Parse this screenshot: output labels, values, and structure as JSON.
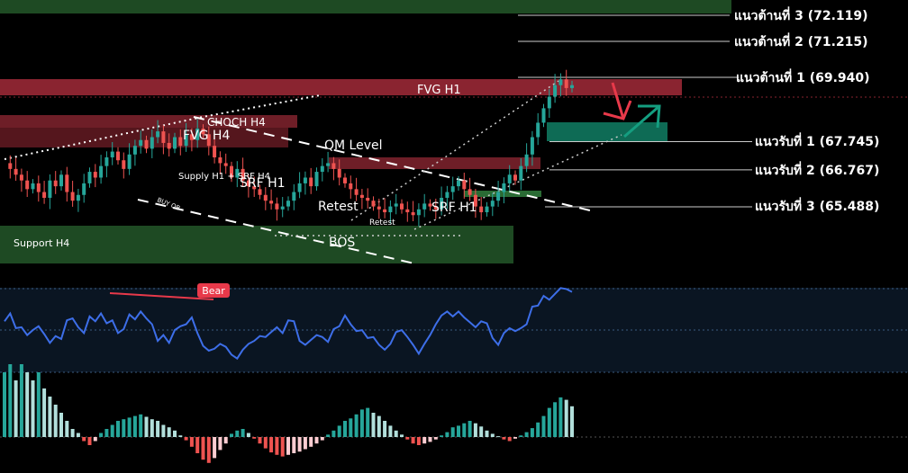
{
  "chart_data": [
    {
      "type": "candlestick",
      "title": "",
      "levels": {
        "resistance": [
          {
            "label": "แนวต้านที่ 3 (72.119)",
            "value": 72.119
          },
          {
            "label": "แนวต้านที่ 2 (71.215)",
            "value": 71.215
          },
          {
            "label": "แนวต้านที่ 1 (69.940)",
            "value": 69.94
          }
        ],
        "support": [
          {
            "label": "แนวรับที่ 1 (67.745)",
            "value": 67.745
          },
          {
            "label": "แนวรับที่ 2 (66.767)",
            "value": 66.767
          },
          {
            "label": "แนวรับที่ 3 (65.488)",
            "value": 65.488
          }
        ]
      },
      "zones": [
        "FVG H1",
        "FVG H4",
        "CHOCH H4",
        "Support H4"
      ],
      "annotations": [
        "QM Level",
        "Supply H1 + SRF H4",
        "SRF H1",
        "SRF H1",
        "Retest",
        "Retest",
        "BOS",
        "BUY OB"
      ],
      "closes": [
        67.0,
        66.8,
        66.6,
        66.4,
        66.1,
        66.3,
        66.0,
        65.8,
        66.4,
        66.2,
        66.6,
        66.0,
        65.7,
        65.9,
        66.3,
        66.7,
        66.5,
        66.9,
        67.2,
        67.4,
        67.1,
        66.8,
        67.3,
        67.6,
        67.8,
        67.5,
        67.9,
        68.1,
        67.7,
        67.5,
        67.9,
        67.6,
        68.0,
        67.8,
        68.2,
        68.0,
        67.6,
        67.2,
        67.0,
        66.9,
        66.5,
        66.8,
        66.4,
        66.2,
        66.1,
        65.9,
        65.7,
        65.6,
        65.4,
        65.5,
        65.7,
        66.0,
        66.3,
        66.5,
        66.2,
        66.7,
        66.9,
        67.0,
        66.8,
        66.5,
        66.3,
        66.1,
        65.9,
        65.8,
        65.7,
        65.5,
        65.4,
        65.3,
        65.5,
        65.6,
        65.4,
        65.3,
        65.2,
        65.4,
        65.6,
        65.5,
        65.4,
        65.8,
        66.0,
        66.2,
        66.4,
        66.1,
        65.9,
        65.5,
        65.3,
        65.5,
        65.7,
        66.0,
        66.3,
        66.6,
        66.4,
        66.9,
        67.3,
        67.9,
        68.4,
        68.9,
        69.3,
        69.7,
        69.9,
        69.6,
        69.7
      ]
    },
    {
      "type": "line",
      "name": "oscillator",
      "annotations": [
        "Bear"
      ],
      "values": [
        52,
        60,
        45,
        46,
        38,
        43,
        47,
        39,
        30,
        37,
        34,
        53,
        55,
        46,
        40,
        57,
        52,
        60,
        50,
        53,
        40,
        44,
        59,
        54,
        62,
        55,
        49,
        32,
        38,
        30,
        43,
        47,
        49,
        56,
        40,
        27,
        22,
        24,
        29,
        26,
        18,
        14,
        23,
        29,
        32,
        37,
        36,
        41,
        46,
        40,
        53,
        52,
        32,
        28,
        33,
        38,
        36,
        31,
        44,
        47,
        58,
        49,
        42,
        43,
        35,
        36,
        28,
        23,
        29,
        41,
        43,
        36,
        28,
        19,
        29,
        38,
        49,
        58,
        62,
        57,
        62,
        56,
        51,
        46,
        52,
        50,
        35,
        28,
        40,
        45,
        42,
        45,
        49,
        67,
        68,
        78,
        74,
        80,
        86,
        85,
        82
      ]
    },
    {
      "type": "bar",
      "name": "histogram",
      "values": [
        8,
        9,
        7,
        9,
        8,
        7,
        8,
        6,
        5,
        4,
        3,
        2,
        1,
        0.5,
        -0.5,
        -1,
        -0.5,
        0.5,
        1,
        1.5,
        2,
        2.2,
        2.4,
        2.6,
        2.8,
        2.5,
        2.2,
        2,
        1.5,
        1.2,
        0.8,
        0.2,
        -0.4,
        -1.2,
        -2,
        -2.8,
        -3.2,
        -2.6,
        -1.6,
        -0.8,
        0.4,
        0.8,
        1,
        0.5,
        -0.2,
        -0.8,
        -1.4,
        -1.9,
        -2.2,
        -2.4,
        -2.2,
        -2,
        -1.8,
        -1.5,
        -1.2,
        -0.8,
        -0.4,
        0.3,
        0.8,
        1.4,
        2,
        2.3,
        2.8,
        3.4,
        3.6,
        3,
        2.6,
        2,
        1.4,
        0.8,
        0.3,
        -0.3,
        -0.8,
        -1,
        -0.8,
        -0.6,
        -0.3,
        0.2,
        0.6,
        1.2,
        1.4,
        1.7,
        2,
        1.7,
        1.3,
        0.8,
        0.4,
        0.1,
        -0.3,
        -0.5,
        -0.2,
        0.2,
        0.6,
        1.1,
        1.8,
        2.6,
        3.6,
        4.3,
        4.9,
        4.6,
        3.8
      ]
    }
  ]
}
